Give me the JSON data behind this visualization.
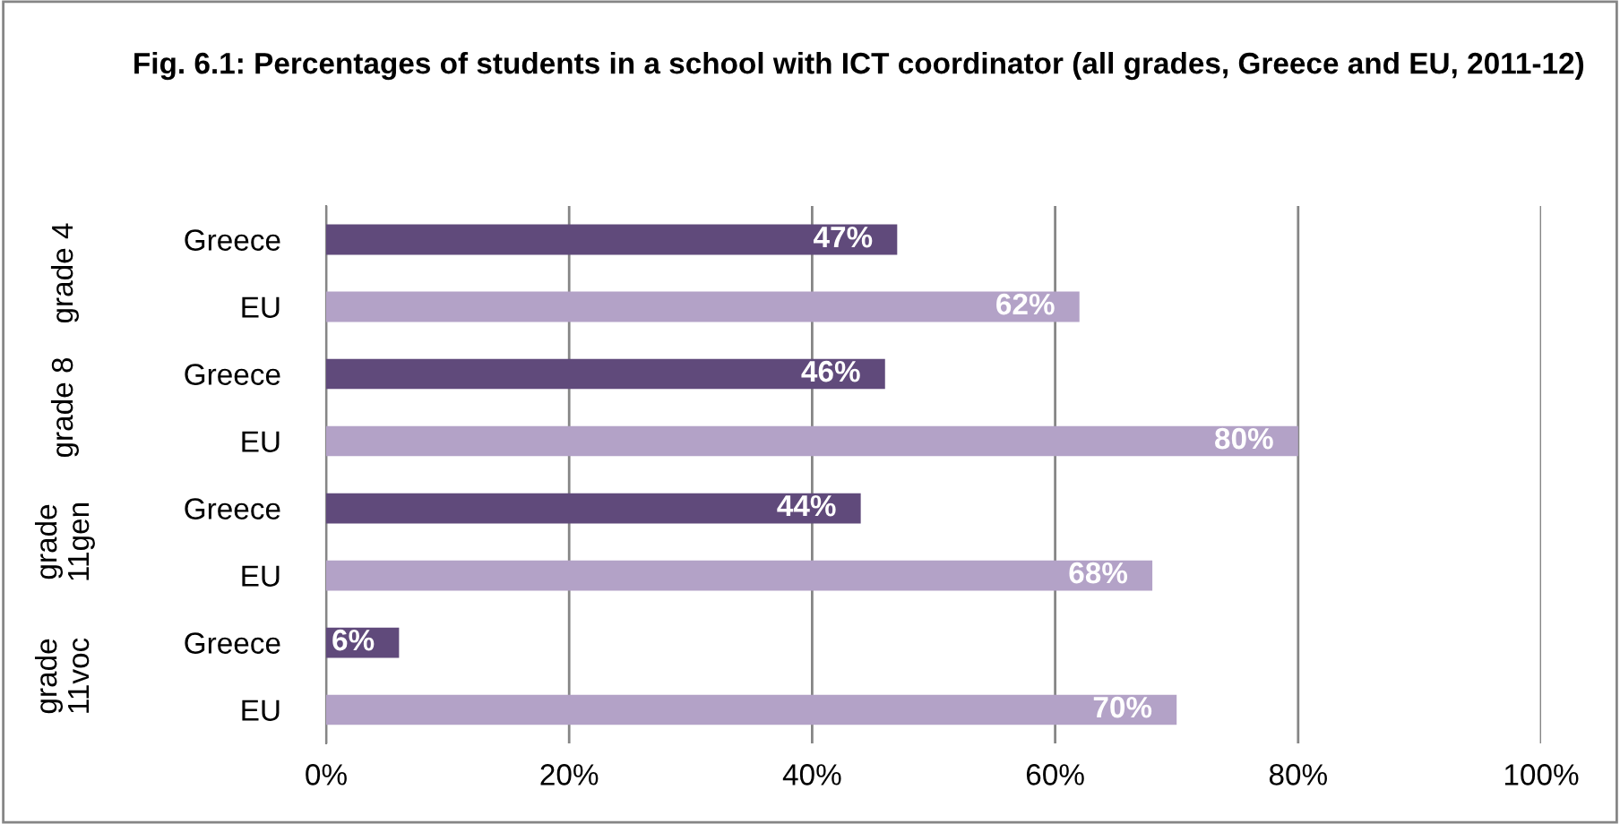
{
  "chart_data": {
    "type": "bar",
    "orientation": "horizontal",
    "title": "Fig. 6.1: Percentages of students in a school with ICT coordinator (all grades, Greece and EU, 2011-12)",
    "categories": [
      "Greece",
      "EU",
      "Greece",
      "EU",
      "Greece",
      "EU",
      "Greece",
      "EU"
    ],
    "values": [
      47,
      62,
      46,
      80,
      44,
      68,
      6,
      70
    ],
    "colors": [
      "#604a7b",
      "#b3a2c7",
      "#604a7b",
      "#b3a2c7",
      "#604a7b",
      "#b3a2c7",
      "#604a7b",
      "#b3a2c7"
    ],
    "value_labels": [
      "47%",
      "62%",
      "46%",
      "80%",
      "44%",
      "68%",
      "6%",
      "70%"
    ],
    "annotations": [
      "grade 4",
      "grade 8",
      "grade 11gen",
      "grade 11voc"
    ],
    "xlim": [
      0,
      100
    ],
    "xticks": [
      {
        "value": 0,
        "label": "0%"
      },
      {
        "value": 20,
        "label": "20%"
      },
      {
        "value": 40,
        "label": "40%"
      },
      {
        "value": 60,
        "label": "60%"
      },
      {
        "value": 80,
        "label": "80%"
      },
      {
        "value": 100,
        "label": "100%"
      }
    ],
    "grid": "x"
  }
}
